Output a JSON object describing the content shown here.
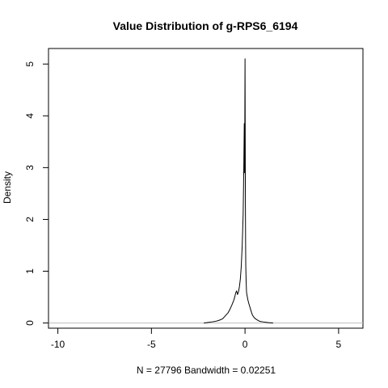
{
  "chart_data": {
    "type": "line",
    "title": "Value Distribution of g-RPS6_6194",
    "xlabel": "N = 27796   Bandwidth = 0.02251",
    "ylabel": "Density",
    "xlim": [
      -10.5,
      6.3
    ],
    "ylim": [
      -0.1,
      5.3
    ],
    "xticks": [
      -10,
      -5,
      0,
      5
    ],
    "xtick_labels": [
      "-10",
      "-5",
      "0",
      "5"
    ],
    "yticks": [
      0,
      1,
      2,
      3,
      4,
      5
    ],
    "ytick_labels": [
      "0",
      "1",
      "2",
      "3",
      "4",
      "5"
    ],
    "grid": false,
    "baseline": 0,
    "series": [
      {
        "x": [
          -2.2,
          -2.0,
          -1.8,
          -1.6,
          -1.4,
          -1.2,
          -1.1,
          -1.0,
          -0.9,
          -0.8,
          -0.7,
          -0.6,
          -0.55,
          -0.5,
          -0.45,
          -0.4,
          -0.35,
          -0.3,
          -0.25,
          -0.2,
          -0.15,
          -0.1,
          -0.08,
          -0.06,
          -0.04,
          -0.02,
          0.0,
          0.01,
          0.02,
          0.03,
          0.04,
          0.06,
          0.08,
          0.1,
          0.15,
          0.2,
          0.25,
          0.3,
          0.35,
          0.4,
          0.5,
          0.6,
          0.7,
          0.8,
          1.0,
          1.2,
          1.5
        ],
        "y": [
          0.0,
          0.01,
          0.02,
          0.03,
          0.05,
          0.08,
          0.12,
          0.16,
          0.2,
          0.27,
          0.35,
          0.44,
          0.5,
          0.58,
          0.62,
          0.55,
          0.6,
          0.7,
          0.85,
          1.1,
          1.5,
          2.1,
          2.6,
          3.2,
          3.85,
          2.9,
          5.1,
          3.6,
          2.3,
          1.6,
          1.1,
          0.8,
          0.6,
          0.55,
          0.45,
          0.38,
          0.32,
          0.26,
          0.2,
          0.15,
          0.1,
          0.07,
          0.05,
          0.03,
          0.02,
          0.01,
          0.0
        ]
      }
    ]
  }
}
